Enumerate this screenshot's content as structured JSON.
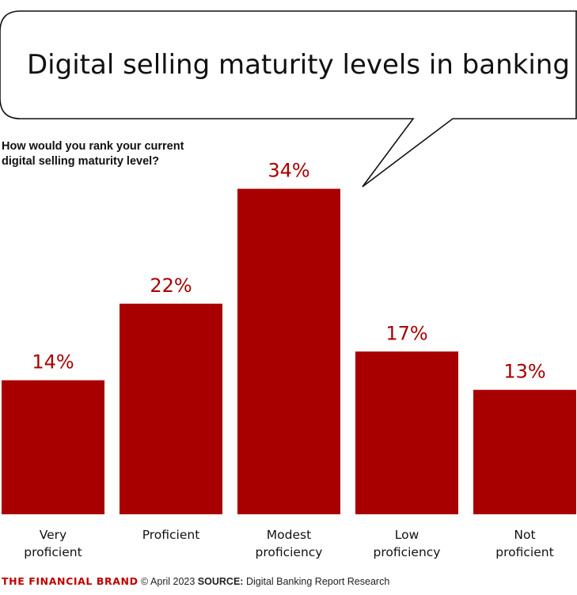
{
  "header": {
    "title": "Digital selling maturity levels in banking",
    "question_line1": "How would you rank your current",
    "question_line2": "digital selling maturity level?"
  },
  "footer": {
    "brand": "THE FINANCIAL BRAND",
    "copyright": "© April 2023",
    "source_label": "SOURCE:",
    "source_text": "Digital Banking Report Research"
  },
  "colors": {
    "bar": "#a80000",
    "value_label": "#a80000",
    "text": "#111111",
    "brand": "#c00000"
  },
  "chart_data": {
    "type": "bar",
    "title": "Digital selling maturity levels in banking",
    "subtitle": "How would you rank your current digital selling maturity level?",
    "categories": [
      [
        "Very",
        "proficient"
      ],
      [
        "Proficient"
      ],
      [
        "Modest",
        "proficiency"
      ],
      [
        "Low",
        "proficiency"
      ],
      [
        "Not",
        "proficient"
      ]
    ],
    "values": [
      14,
      22,
      34,
      17,
      13
    ],
    "value_labels": [
      "14%",
      "22%",
      "34%",
      "17%",
      "13%"
    ],
    "unit": "%",
    "ylim": [
      0,
      40
    ],
    "grid": false,
    "legend": "none",
    "xlabel": "",
    "ylabel": ""
  }
}
